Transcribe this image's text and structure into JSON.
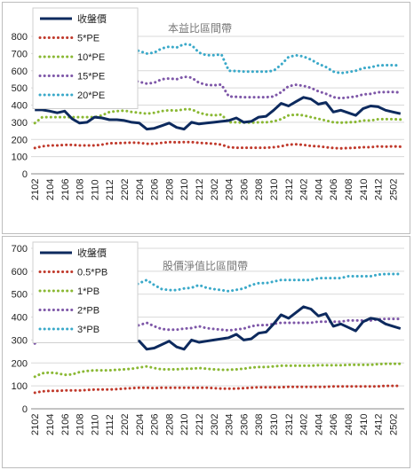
{
  "chart_data": [
    {
      "type": "line",
      "title": "本益比區間帶",
      "ylim": [
        0,
        800
      ],
      "yticks": [
        0,
        100,
        200,
        300,
        400,
        500,
        600,
        700,
        800
      ],
      "categories": [
        "2102",
        "2103",
        "2104",
        "2105",
        "2106",
        "2107",
        "2108",
        "2109",
        "2110",
        "2111",
        "2112",
        "2201",
        "2202",
        "2203",
        "2204",
        "2205",
        "2206",
        "2207",
        "2208",
        "2209",
        "2210",
        "2211",
        "2212",
        "2301",
        "2302",
        "2303",
        "2304",
        "2305",
        "2306",
        "2307",
        "2308",
        "2309",
        "2310",
        "2311",
        "2312",
        "2401",
        "2402",
        "2403",
        "2404",
        "2405",
        "2406",
        "2407",
        "2408",
        "2409",
        "2410",
        "2411",
        "2412",
        "2501",
        "2502",
        "2503"
      ],
      "xtick_labels": [
        "2102",
        "2104",
        "2106",
        "2108",
        "2110",
        "2112",
        "2202",
        "2204",
        "2206",
        "2208",
        "2210",
        "2212",
        "2302",
        "2304",
        "2306",
        "2308",
        "2310",
        "2312",
        "2402",
        "2404",
        "2406",
        "2408",
        "2410",
        "2412",
        "2502"
      ],
      "legend_position": "top-left",
      "grid": "horizontal",
      "series": [
        {
          "name": "收盤價",
          "style": "solid",
          "color": "#0d2a5e",
          "values": [
            372,
            372,
            365,
            355,
            365,
            320,
            295,
            300,
            330,
            325,
            315,
            315,
            310,
            300,
            295,
            260,
            265,
            280,
            295,
            270,
            260,
            300,
            290,
            295,
            300,
            305,
            310,
            325,
            300,
            305,
            330,
            335,
            370,
            410,
            395,
            420,
            445,
            435,
            405,
            415,
            360,
            370,
            355,
            340,
            380,
            395,
            390,
            370,
            360,
            350
          ]
        },
        {
          "name": "5*PE",
          "style": "dotted",
          "color": "#c0392b",
          "values": [
            150,
            160,
            165,
            165,
            168,
            168,
            165,
            165,
            165,
            170,
            178,
            178,
            180,
            182,
            180,
            175,
            175,
            180,
            185,
            183,
            185,
            185,
            180,
            178,
            175,
            170,
            155,
            152,
            152,
            152,
            152,
            152,
            155,
            160,
            170,
            172,
            168,
            162,
            160,
            155,
            150,
            148,
            150,
            152,
            155,
            155,
            160,
            158,
            160,
            158
          ]
        },
        {
          "name": "10*PE",
          "style": "dotted",
          "color": "#8ab833",
          "values": [
            295,
            330,
            330,
            330,
            330,
            330,
            330,
            330,
            330,
            340,
            360,
            365,
            368,
            360,
            355,
            350,
            355,
            365,
            370,
            368,
            375,
            375,
            355,
            345,
            340,
            345,
            300,
            300,
            298,
            298,
            300,
            300,
            305,
            318,
            340,
            345,
            340,
            330,
            320,
            310,
            300,
            298,
            300,
            302,
            310,
            310,
            318,
            318,
            318,
            316
          ]
        },
        {
          "name": "15*PE",
          "style": "dotted",
          "color": "#7e57a8",
          "values": [
            440,
            490,
            495,
            495,
            500,
            500,
            495,
            495,
            500,
            515,
            540,
            548,
            552,
            545,
            535,
            525,
            530,
            550,
            555,
            550,
            565,
            560,
            530,
            518,
            515,
            520,
            450,
            448,
            446,
            446,
            446,
            446,
            450,
            475,
            510,
            518,
            512,
            500,
            480,
            466,
            446,
            440,
            445,
            450,
            462,
            465,
            475,
            476,
            476,
            474
          ]
        },
        {
          "name": "20*PE",
          "style": "dotted",
          "color": "#3aa9c9",
          "values": [
            585,
            650,
            660,
            660,
            665,
            668,
            660,
            660,
            665,
            690,
            720,
            730,
            735,
            725,
            715,
            700,
            705,
            730,
            740,
            735,
            755,
            750,
            705,
            690,
            690,
            695,
            600,
            598,
            595,
            595,
            595,
            595,
            600,
            635,
            680,
            690,
            683,
            665,
            640,
            622,
            595,
            586,
            592,
            600,
            615,
            620,
            630,
            632,
            632,
            630
          ]
        }
      ]
    },
    {
      "type": "line",
      "title": "股價淨值比區間帶",
      "ylim": [
        0,
        700
      ],
      "yticks": [
        0,
        100,
        200,
        300,
        400,
        500,
        600,
        700
      ],
      "categories": [
        "2102",
        "2103",
        "2104",
        "2105",
        "2106",
        "2107",
        "2108",
        "2109",
        "2110",
        "2111",
        "2112",
        "2201",
        "2202",
        "2203",
        "2204",
        "2205",
        "2206",
        "2207",
        "2208",
        "2209",
        "2210",
        "2211",
        "2212",
        "2301",
        "2302",
        "2303",
        "2304",
        "2305",
        "2306",
        "2307",
        "2308",
        "2309",
        "2310",
        "2311",
        "2312",
        "2401",
        "2402",
        "2403",
        "2404",
        "2405",
        "2406",
        "2407",
        "2408",
        "2409",
        "2410",
        "2411",
        "2412",
        "2501",
        "2502",
        "2503"
      ],
      "xtick_labels": [
        "2102",
        "2104",
        "2106",
        "2108",
        "2110",
        "2112",
        "2202",
        "2204",
        "2206",
        "2208",
        "2210",
        "2212",
        "2302",
        "2304",
        "2306",
        "2308",
        "2310",
        "2312",
        "2402",
        "2404",
        "2406",
        "2408",
        "2410",
        "2412",
        "2502"
      ],
      "legend_position": "top-left",
      "grid": "horizontal",
      "series": [
        {
          "name": "收盤價",
          "style": "solid",
          "color": "#0d2a5e",
          "values": [
            372,
            372,
            365,
            355,
            365,
            320,
            295,
            300,
            330,
            325,
            315,
            315,
            310,
            300,
            295,
            260,
            265,
            280,
            295,
            270,
            260,
            300,
            290,
            295,
            300,
            305,
            310,
            325,
            300,
            305,
            330,
            335,
            370,
            410,
            395,
            420,
            445,
            435,
            405,
            415,
            360,
            370,
            355,
            340,
            380,
            395,
            390,
            370,
            360,
            350
          ]
        },
        {
          "name": "0.5*PB",
          "style": "dotted",
          "color": "#c0392b",
          "values": [
            70,
            76,
            78,
            78,
            80,
            80,
            80,
            82,
            84,
            84,
            84,
            86,
            88,
            90,
            92,
            92,
            90,
            92,
            92,
            92,
            92,
            92,
            92,
            92,
            90,
            88,
            88,
            88,
            90,
            92,
            94,
            94,
            94,
            94,
            96,
            96,
            96,
            96,
            96,
            96,
            98,
            98,
            98,
            98,
            98,
            98,
            98,
            100,
            100,
            100
          ]
        },
        {
          "name": "1*PB",
          "style": "dotted",
          "color": "#8ab833",
          "values": [
            140,
            155,
            158,
            155,
            148,
            150,
            160,
            165,
            168,
            168,
            168,
            170,
            172,
            175,
            180,
            185,
            178,
            172,
            172,
            172,
            175,
            175,
            178,
            175,
            172,
            170,
            170,
            172,
            175,
            180,
            182,
            182,
            185,
            188,
            188,
            188,
            188,
            188,
            190,
            190,
            190,
            190,
            192,
            192,
            192,
            192,
            195,
            196,
            196,
            196
          ]
        },
        {
          "name": "2*PB",
          "style": "dotted",
          "color": "#7e57a8",
          "values": [
            285,
            310,
            318,
            312,
            305,
            300,
            320,
            330,
            335,
            335,
            336,
            340,
            345,
            355,
            365,
            375,
            360,
            348,
            345,
            345,
            350,
            352,
            360,
            352,
            348,
            345,
            342,
            346,
            350,
            360,
            365,
            365,
            370,
            375,
            375,
            375,
            375,
            375,
            380,
            380,
            380,
            380,
            385,
            385,
            385,
            385,
            390,
            392,
            392,
            392
          ]
        },
        {
          "name": "3*PB",
          "style": "dotted",
          "color": "#3aa9c9",
          "values": [
            430,
            465,
            478,
            468,
            458,
            450,
            480,
            495,
            505,
            505,
            505,
            512,
            518,
            532,
            548,
            562,
            540,
            522,
            518,
            518,
            525,
            528,
            540,
            528,
            522,
            518,
            513,
            519,
            525,
            540,
            548,
            548,
            555,
            562,
            562,
            562,
            562,
            562,
            570,
            570,
            570,
            570,
            578,
            578,
            578,
            578,
            585,
            588,
            588,
            588
          ]
        }
      ]
    }
  ]
}
